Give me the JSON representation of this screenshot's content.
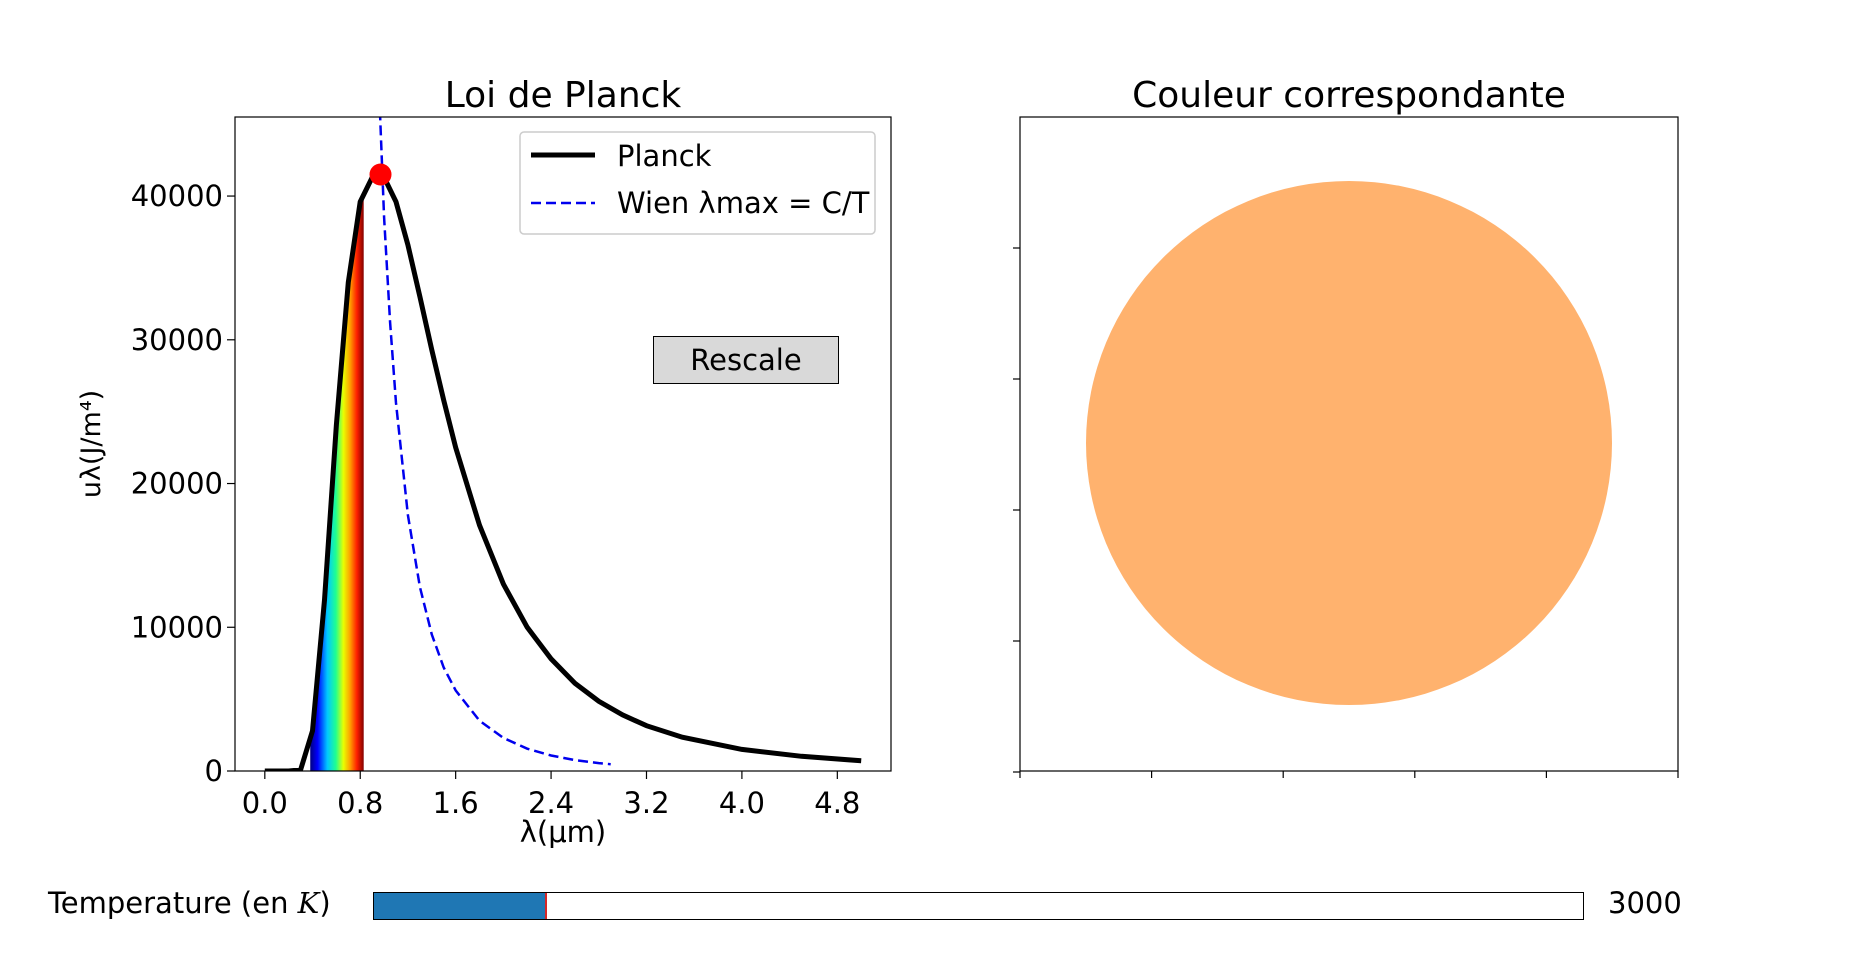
{
  "chart_data": [
    {
      "type": "line",
      "title": "Loi de Planck",
      "xlabel": "λ(μm)",
      "ylabel": "uλ(J/m⁴)",
      "xlim": [
        -0.25,
        5.25
      ],
      "ylim": [
        0,
        45500
      ],
      "xticks": [
        "0.0",
        "0.8",
        "1.6",
        "2.4",
        "3.2",
        "4.0",
        "4.8"
      ],
      "yticks": [
        "0",
        "10000",
        "20000",
        "30000",
        "40000"
      ],
      "grid": false,
      "legend_position": "top-right",
      "temperature_K": 3000,
      "series": [
        {
          "name": "Planck",
          "color": "#000000",
          "style": "solid",
          "x": [
            0.0,
            0.2,
            0.3,
            0.4,
            0.5,
            0.6,
            0.7,
            0.8,
            0.9,
            0.97,
            1.0,
            1.1,
            1.2,
            1.3,
            1.4,
            1.5,
            1.6,
            1.8,
            2.0,
            2.2,
            2.4,
            2.6,
            2.8,
            3.0,
            3.2,
            3.5,
            4.0,
            4.5,
            5.0
          ],
          "y": [
            0,
            0,
            85,
            2800,
            11900,
            24100,
            34000,
            39600,
            41300,
            41500,
            41300,
            39600,
            36600,
            33000,
            29300,
            25800,
            22500,
            17100,
            13000,
            10000,
            7800,
            6100,
            4850,
            3900,
            3150,
            2350,
            1500,
            1020,
            710
          ]
        },
        {
          "name": "Wien λmax = C/T",
          "color": "#0000ee",
          "style": "dashed",
          "x": [
            0.96,
            1.0,
            1.05,
            1.1,
            1.2,
            1.3,
            1.4,
            1.5,
            1.6,
            1.8,
            2.0,
            2.2,
            2.4,
            2.6,
            2.8,
            2.9
          ],
          "y": [
            47000,
            38500,
            31200,
            25600,
            17800,
            12800,
            9500,
            7200,
            5600,
            3500,
            2300,
            1550,
            1080,
            760,
            550,
            470
          ]
        }
      ],
      "annotations": [
        {
          "type": "marker",
          "x": 0.97,
          "y": 41500,
          "color": "#ff0000"
        },
        {
          "type": "visible-spectrum-fill",
          "x_range": [
            0.38,
            0.83
          ]
        }
      ]
    },
    {
      "type": "other",
      "title": "Couleur correspondante",
      "circle_color": "#ffb26e"
    }
  ],
  "controls": {
    "rescale_label": "Rescale",
    "slider": {
      "label_text": "Temperature (en ",
      "label_var": "K",
      "label_close": ")",
      "value_text": "3000",
      "value": 3000,
      "fill_fraction": 0.142,
      "fill_color": "#1f77b4"
    }
  }
}
